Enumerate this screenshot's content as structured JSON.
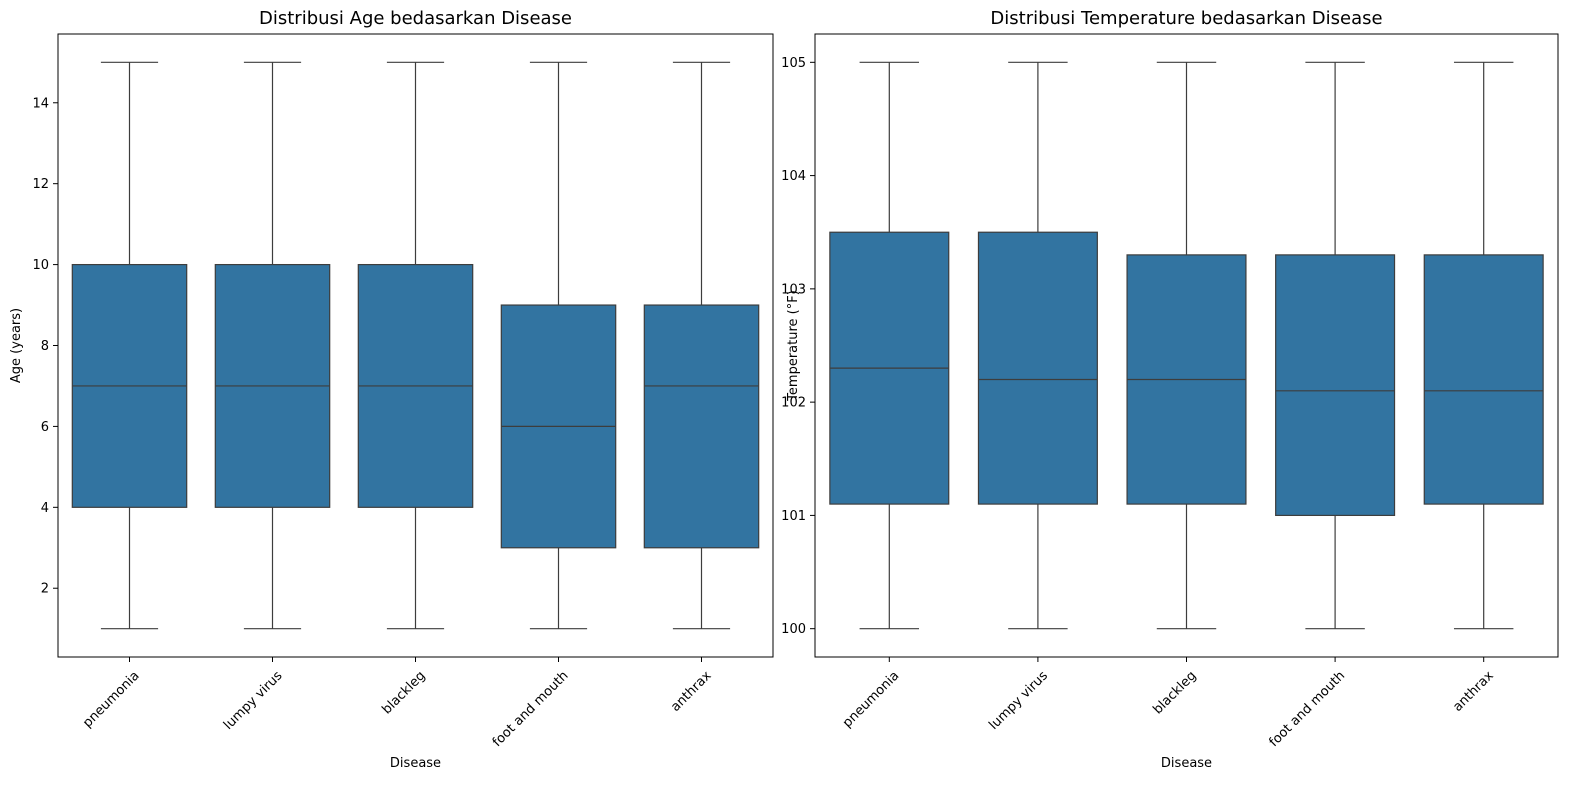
{
  "colors": {
    "box_fill": "#3274a1",
    "line": "#3d3d3d",
    "frame": "#000000"
  },
  "chart_data": [
    {
      "type": "box",
      "title": "Distribusi Age bedasarkan Disease",
      "xlabel": "Disease",
      "ylabel": "Age (years)",
      "categories": [
        "pneumonia",
        "lumpy virus",
        "blackleg",
        "foot and mouth",
        "anthrax"
      ],
      "ylim": [
        0.3,
        15.7
      ],
      "yticks": [
        2,
        4,
        6,
        8,
        10,
        12,
        14
      ],
      "boxes": [
        {
          "min": 1,
          "q1": 4,
          "median": 7,
          "q3": 10,
          "max": 15
        },
        {
          "min": 1,
          "q1": 4,
          "median": 7,
          "q3": 10,
          "max": 15
        },
        {
          "min": 1,
          "q1": 4,
          "median": 7,
          "q3": 10,
          "max": 15
        },
        {
          "min": 1,
          "q1": 3,
          "median": 6,
          "q3": 9,
          "max": 15
        },
        {
          "min": 1,
          "q1": 3,
          "median": 7,
          "q3": 9,
          "max": 15
        }
      ],
      "grid": false
    },
    {
      "type": "box",
      "title": "Distribusi Temperature bedasarkan Disease",
      "xlabel": "Disease",
      "ylabel": "Temperature (°F)",
      "categories": [
        "pneumonia",
        "lumpy virus",
        "blackleg",
        "foot and mouth",
        "anthrax"
      ],
      "ylim": [
        99.75,
        105.25
      ],
      "yticks": [
        100,
        101,
        102,
        103,
        104,
        105
      ],
      "boxes": [
        {
          "min": 100,
          "q1": 101.1,
          "median": 102.3,
          "q3": 103.5,
          "max": 105
        },
        {
          "min": 100,
          "q1": 101.1,
          "median": 102.2,
          "q3": 103.5,
          "max": 105
        },
        {
          "min": 100,
          "q1": 101.1,
          "median": 102.2,
          "q3": 103.3,
          "max": 105
        },
        {
          "min": 100,
          "q1": 101.0,
          "median": 102.1,
          "q3": 103.3,
          "max": 105
        },
        {
          "min": 100,
          "q1": 101.1,
          "median": 102.1,
          "q3": 103.3,
          "max": 105
        }
      ],
      "grid": false
    }
  ]
}
